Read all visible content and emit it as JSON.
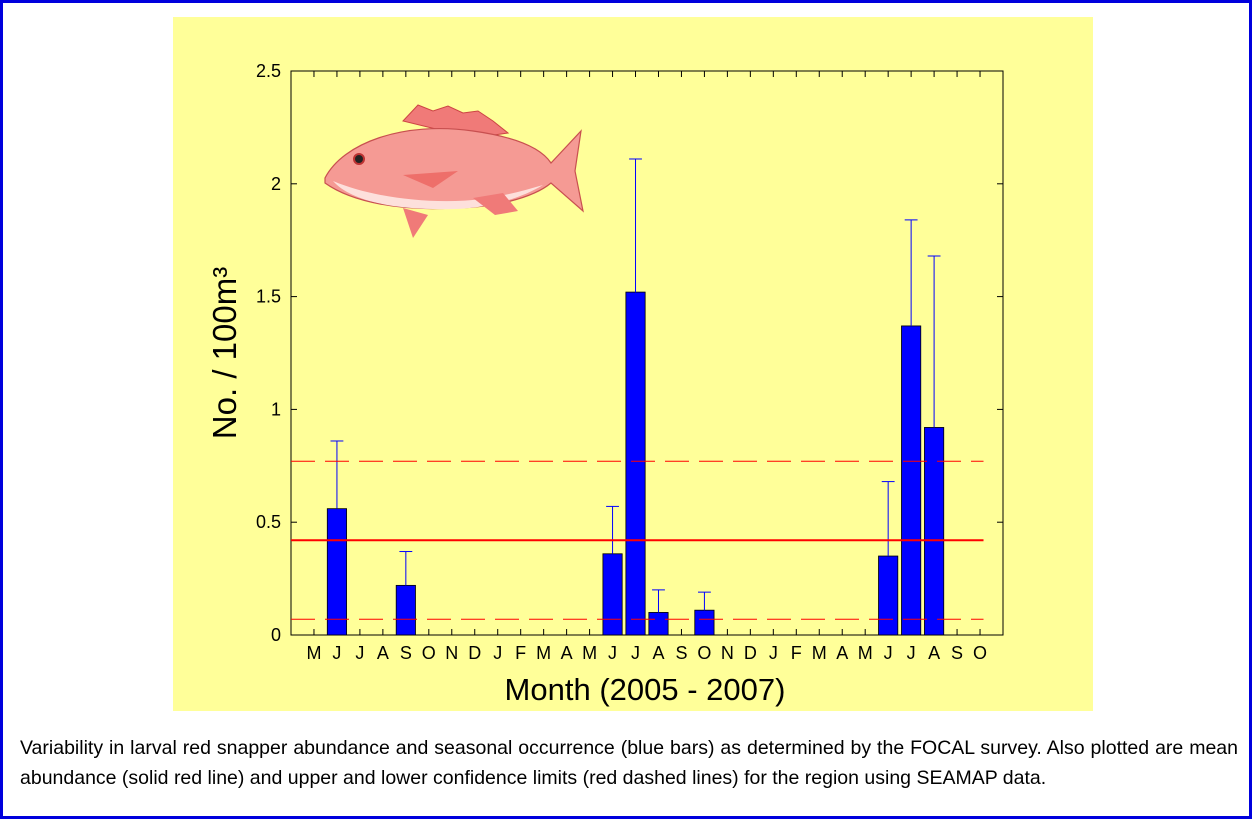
{
  "chart_data": {
    "type": "bar",
    "ylabel": "No. / 100m³",
    "xlabel": "Month (2005 - 2007)",
    "categories": [
      "M",
      "J",
      "J",
      "A",
      "S",
      "O",
      "N",
      "D",
      "J",
      "F",
      "M",
      "A",
      "M",
      "J",
      "J",
      "A",
      "S",
      "O",
      "N",
      "D",
      "J",
      "F",
      "M",
      "A",
      "M",
      "J",
      "J",
      "A",
      "S",
      "O"
    ],
    "values": [
      0,
      0.56,
      0,
      0,
      0.22,
      0,
      0,
      0,
      0,
      0,
      0,
      0,
      0,
      0.36,
      1.52,
      0.1,
      0,
      0.11,
      0,
      0,
      0,
      0,
      0,
      0,
      0,
      0.35,
      1.37,
      0.92,
      0,
      0
    ],
    "errors": [
      0,
      0.3,
      0,
      0,
      0.15,
      0,
      0,
      0,
      0,
      0,
      0,
      0,
      0,
      0.21,
      0.59,
      0.1,
      0,
      0.08,
      0,
      0,
      0,
      0,
      0,
      0,
      0,
      0.33,
      0.47,
      0.76,
      0,
      0
    ],
    "color": "#0000ff",
    "error_color": "#0000ff",
    "reference_lines": [
      {
        "value": 0.42,
        "style": "solid",
        "color": "#ff0000"
      },
      {
        "value": 0.77,
        "style": "dashed",
        "color": "#ff0000"
      },
      {
        "value": 0.07,
        "style": "dashed",
        "color": "#ff0000"
      }
    ],
    "ylim": [
      0,
      2.5
    ],
    "yticks": [
      0,
      0.5,
      1,
      1.5,
      2,
      2.5
    ],
    "grid": false
  },
  "caption": "Variability in larval red snapper abundance and seasonal occurrence (blue bars) as determined by the FOCAL survey. Also plotted are mean abundance (solid red line) and upper and lower confidence limits (red dashed lines) for the region using SEAMAP data."
}
